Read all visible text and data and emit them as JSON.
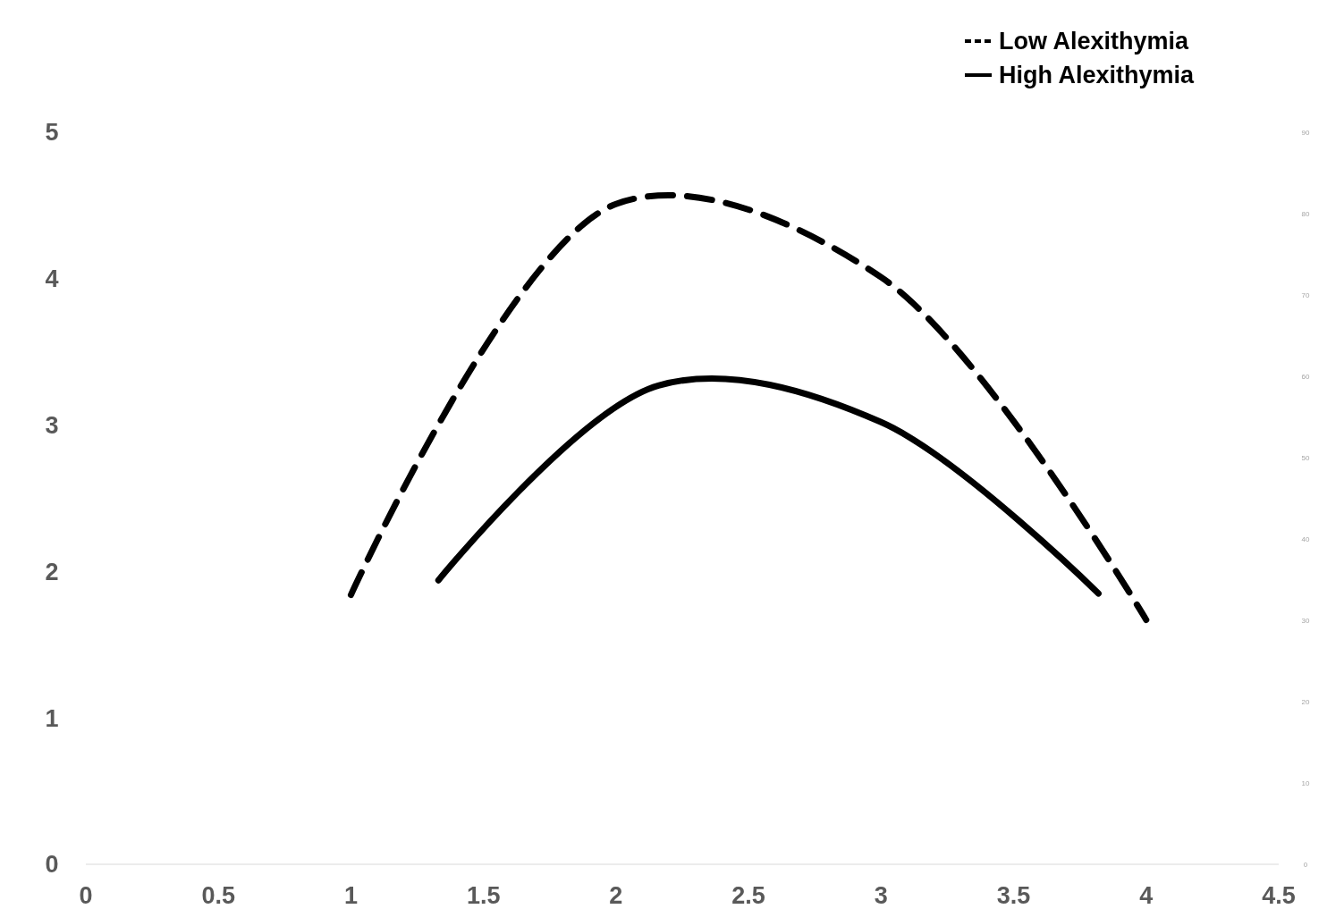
{
  "chart_data": {
    "type": "line",
    "xlim": [
      0,
      4.5
    ],
    "xticks": [
      0,
      0.5,
      1,
      1.5,
      2,
      2.5,
      3,
      3.5,
      4,
      4.5
    ],
    "ylim": [
      0,
      5
    ],
    "yticks": [
      0,
      1,
      2,
      3,
      4,
      5
    ],
    "y2lim": [
      0,
      90
    ],
    "y2ticks": [
      0,
      10,
      20,
      30,
      40,
      50,
      60,
      70,
      80,
      90
    ],
    "grid": false,
    "legend": "top right",
    "marker": "none",
    "series": [
      {
        "name": "Low Alexithymia",
        "color": "#000000",
        "line_style": "dashed",
        "x": [
          1,
          2,
          3,
          4
        ],
        "values": [
          1.84,
          4.51,
          4.01,
          1.67
        ]
      },
      {
        "name": "High Alexithymia",
        "color": "#000000",
        "line_style": "solid",
        "x": [
          1.33,
          2.16,
          3,
          3.82
        ],
        "values": [
          1.94,
          3.27,
          3.02,
          1.85
        ]
      }
    ]
  }
}
